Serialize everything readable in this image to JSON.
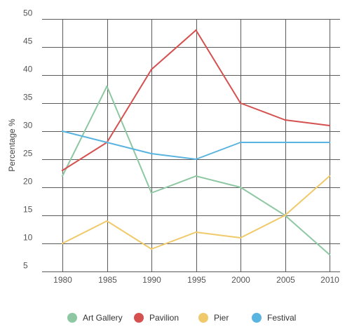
{
  "chart_data": {
    "type": "line",
    "title": "",
    "xlabel": "",
    "ylabel": "Percentage %",
    "x": [
      1980,
      1985,
      1990,
      1995,
      2000,
      2005,
      2010
    ],
    "ylim": [
      5,
      50
    ],
    "y_ticks": [
      5,
      10,
      15,
      20,
      25,
      30,
      35,
      40,
      45,
      50
    ],
    "grid": true,
    "legend_position": "bottom",
    "series": [
      {
        "name": "Art Gallery",
        "color": "#8ec8a3",
        "values": [
          22,
          38,
          19,
          22,
          20,
          15,
          8
        ]
      },
      {
        "name": "Pavilion",
        "color": "#d55150",
        "values": [
          23,
          28,
          41,
          48,
          35,
          32,
          31
        ]
      },
      {
        "name": "Pier",
        "color": "#f0ca6a",
        "values": [
          10,
          14,
          9,
          12,
          11,
          15,
          22
        ]
      },
      {
        "name": "Festival",
        "color": "#5ab4e0",
        "values": [
          30,
          28,
          26,
          25,
          28,
          28,
          28
        ]
      }
    ]
  }
}
